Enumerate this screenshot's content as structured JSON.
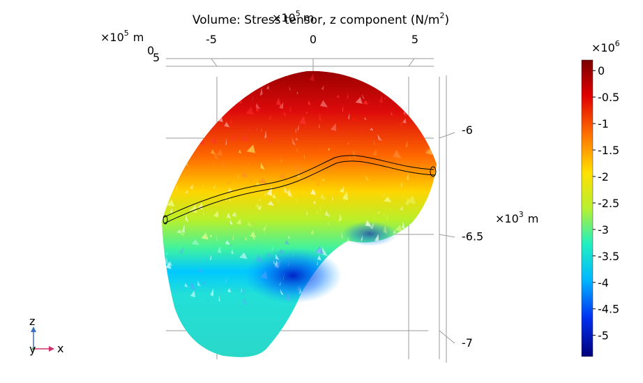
{
  "chart_data": {
    "type": "heatmap",
    "title": "Volume: Stress tensor, z component (N/m",
    "title_sup": "2",
    "title_tail": ")",
    "x_axis": {
      "multiplier": "×10",
      "multiplier_exp": "5",
      "unit": "m",
      "ticks": [
        -5,
        0,
        5
      ],
      "tick_labels": [
        "-5",
        "0",
        "5"
      ],
      "range": [
        -7.2,
        5.8
      ]
    },
    "y_axis": {
      "multiplier": "×10",
      "multiplier_exp": "5",
      "unit": "m",
      "tick_labels": [
        "0",
        "5"
      ]
    },
    "z_axis": {
      "multiplier": "×10",
      "multiplier_exp": "3",
      "unit": "m",
      "ticks": [
        -6,
        -6.5,
        -7
      ],
      "tick_labels": [
        "-6",
        "-6.5",
        "-7"
      ],
      "range": [
        -7.05,
        -5.75
      ]
    },
    "colorbar": {
      "multiplier": "×10",
      "multiplier_exp": "6",
      "range": [
        -5.4,
        0.2
      ],
      "ticks": [
        0,
        -0.5,
        -1,
        -1.5,
        -2,
        -2.5,
        -3,
        -3.5,
        -4,
        -4.5,
        -5
      ],
      "tick_labels": [
        "0",
        "-0.5",
        "-1",
        "-1.5",
        "-2",
        "-2.5",
        "-3",
        "-3.5",
        "-4",
        "-4.5",
        "-5"
      ],
      "colormap": [
        "#8b0000",
        "#e00000",
        "#ff6a00",
        "#ffd700",
        "#c8f000",
        "#00e8c0",
        "#00c8ff",
        "#0044ff",
        "#00008b"
      ]
    },
    "grid": true,
    "legend": "colorbar-right"
  },
  "triad": {
    "z": "z",
    "y": "y",
    "x": "x"
  }
}
